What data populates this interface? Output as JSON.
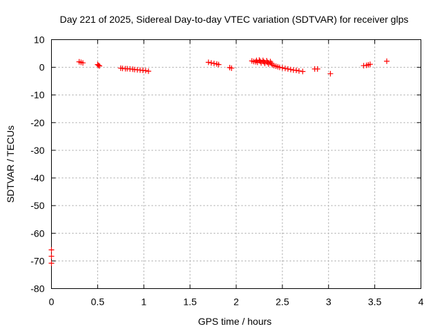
{
  "chart_data": {
    "type": "scatter",
    "title": "Day 221 of 2025, Sidereal Day-to-day VTEC variation (SDTVAR) for receiver glps",
    "xlabel": "GPS time / hours",
    "ylabel": "SDTVAR / TECUs",
    "xlim": [
      0,
      4
    ],
    "ylim": [
      -80,
      10
    ],
    "xticks": [
      0,
      0.5,
      1,
      1.5,
      2,
      2.5,
      3,
      3.5,
      4
    ],
    "xtick_labels": [
      "0",
      "0.5",
      "1",
      "1.5",
      "2",
      "2.5",
      "3",
      "3.5",
      "4"
    ],
    "yticks": [
      10,
      0,
      -10,
      -20,
      -30,
      -40,
      -50,
      -60,
      -70,
      -80
    ],
    "ytick_labels": [
      "10",
      "0",
      "-10",
      "-20",
      "-30",
      "-40",
      "-50",
      "-60",
      "-70",
      "-80"
    ],
    "grid": true,
    "marker": "+",
    "series": [
      {
        "name": "SDTVAR",
        "color": "#ff0000",
        "x": [
          0.0,
          0.0,
          0.0,
          0.3,
          0.32,
          0.34,
          0.5,
          0.51,
          0.52,
          0.75,
          0.77,
          0.8,
          0.82,
          0.85,
          0.88,
          0.9,
          0.93,
          0.96,
          0.99,
          1.02,
          1.05,
          1.7,
          1.73,
          1.76,
          1.79,
          1.81,
          1.93,
          1.95,
          2.17,
          2.19,
          2.21,
          2.22,
          2.23,
          2.25,
          2.26,
          2.27,
          2.29,
          2.3,
          2.31,
          2.33,
          2.34,
          2.35,
          2.37,
          2.38,
          2.39,
          2.41,
          2.43,
          2.45,
          2.47,
          2.5,
          2.53,
          2.56,
          2.59,
          2.62,
          2.65,
          2.68,
          2.72,
          2.85,
          2.88,
          3.02,
          3.38,
          3.41,
          3.43,
          3.45,
          3.63
        ],
        "y": [
          -66.0,
          -68.3,
          -70.8,
          2.0,
          1.8,
          1.6,
          1.0,
          0.7,
          0.5,
          -0.3,
          -0.4,
          -0.5,
          -0.5,
          -0.6,
          -0.7,
          -0.8,
          -0.9,
          -1.0,
          -1.1,
          -1.2,
          -1.4,
          1.8,
          1.6,
          1.4,
          1.2,
          1.0,
          -0.1,
          -0.3,
          2.3,
          2.1,
          2.0,
          2.5,
          1.8,
          2.6,
          2.2,
          1.6,
          2.5,
          2.0,
          1.4,
          2.4,
          1.8,
          1.2,
          2.1,
          1.5,
          0.9,
          0.6,
          0.4,
          0.2,
          0.0,
          -0.2,
          -0.4,
          -0.6,
          -0.8,
          -1.0,
          -1.1,
          -1.3,
          -1.5,
          -0.6,
          -0.6,
          -2.3,
          0.6,
          0.7,
          0.9,
          1.1,
          2.2
        ]
      }
    ]
  }
}
